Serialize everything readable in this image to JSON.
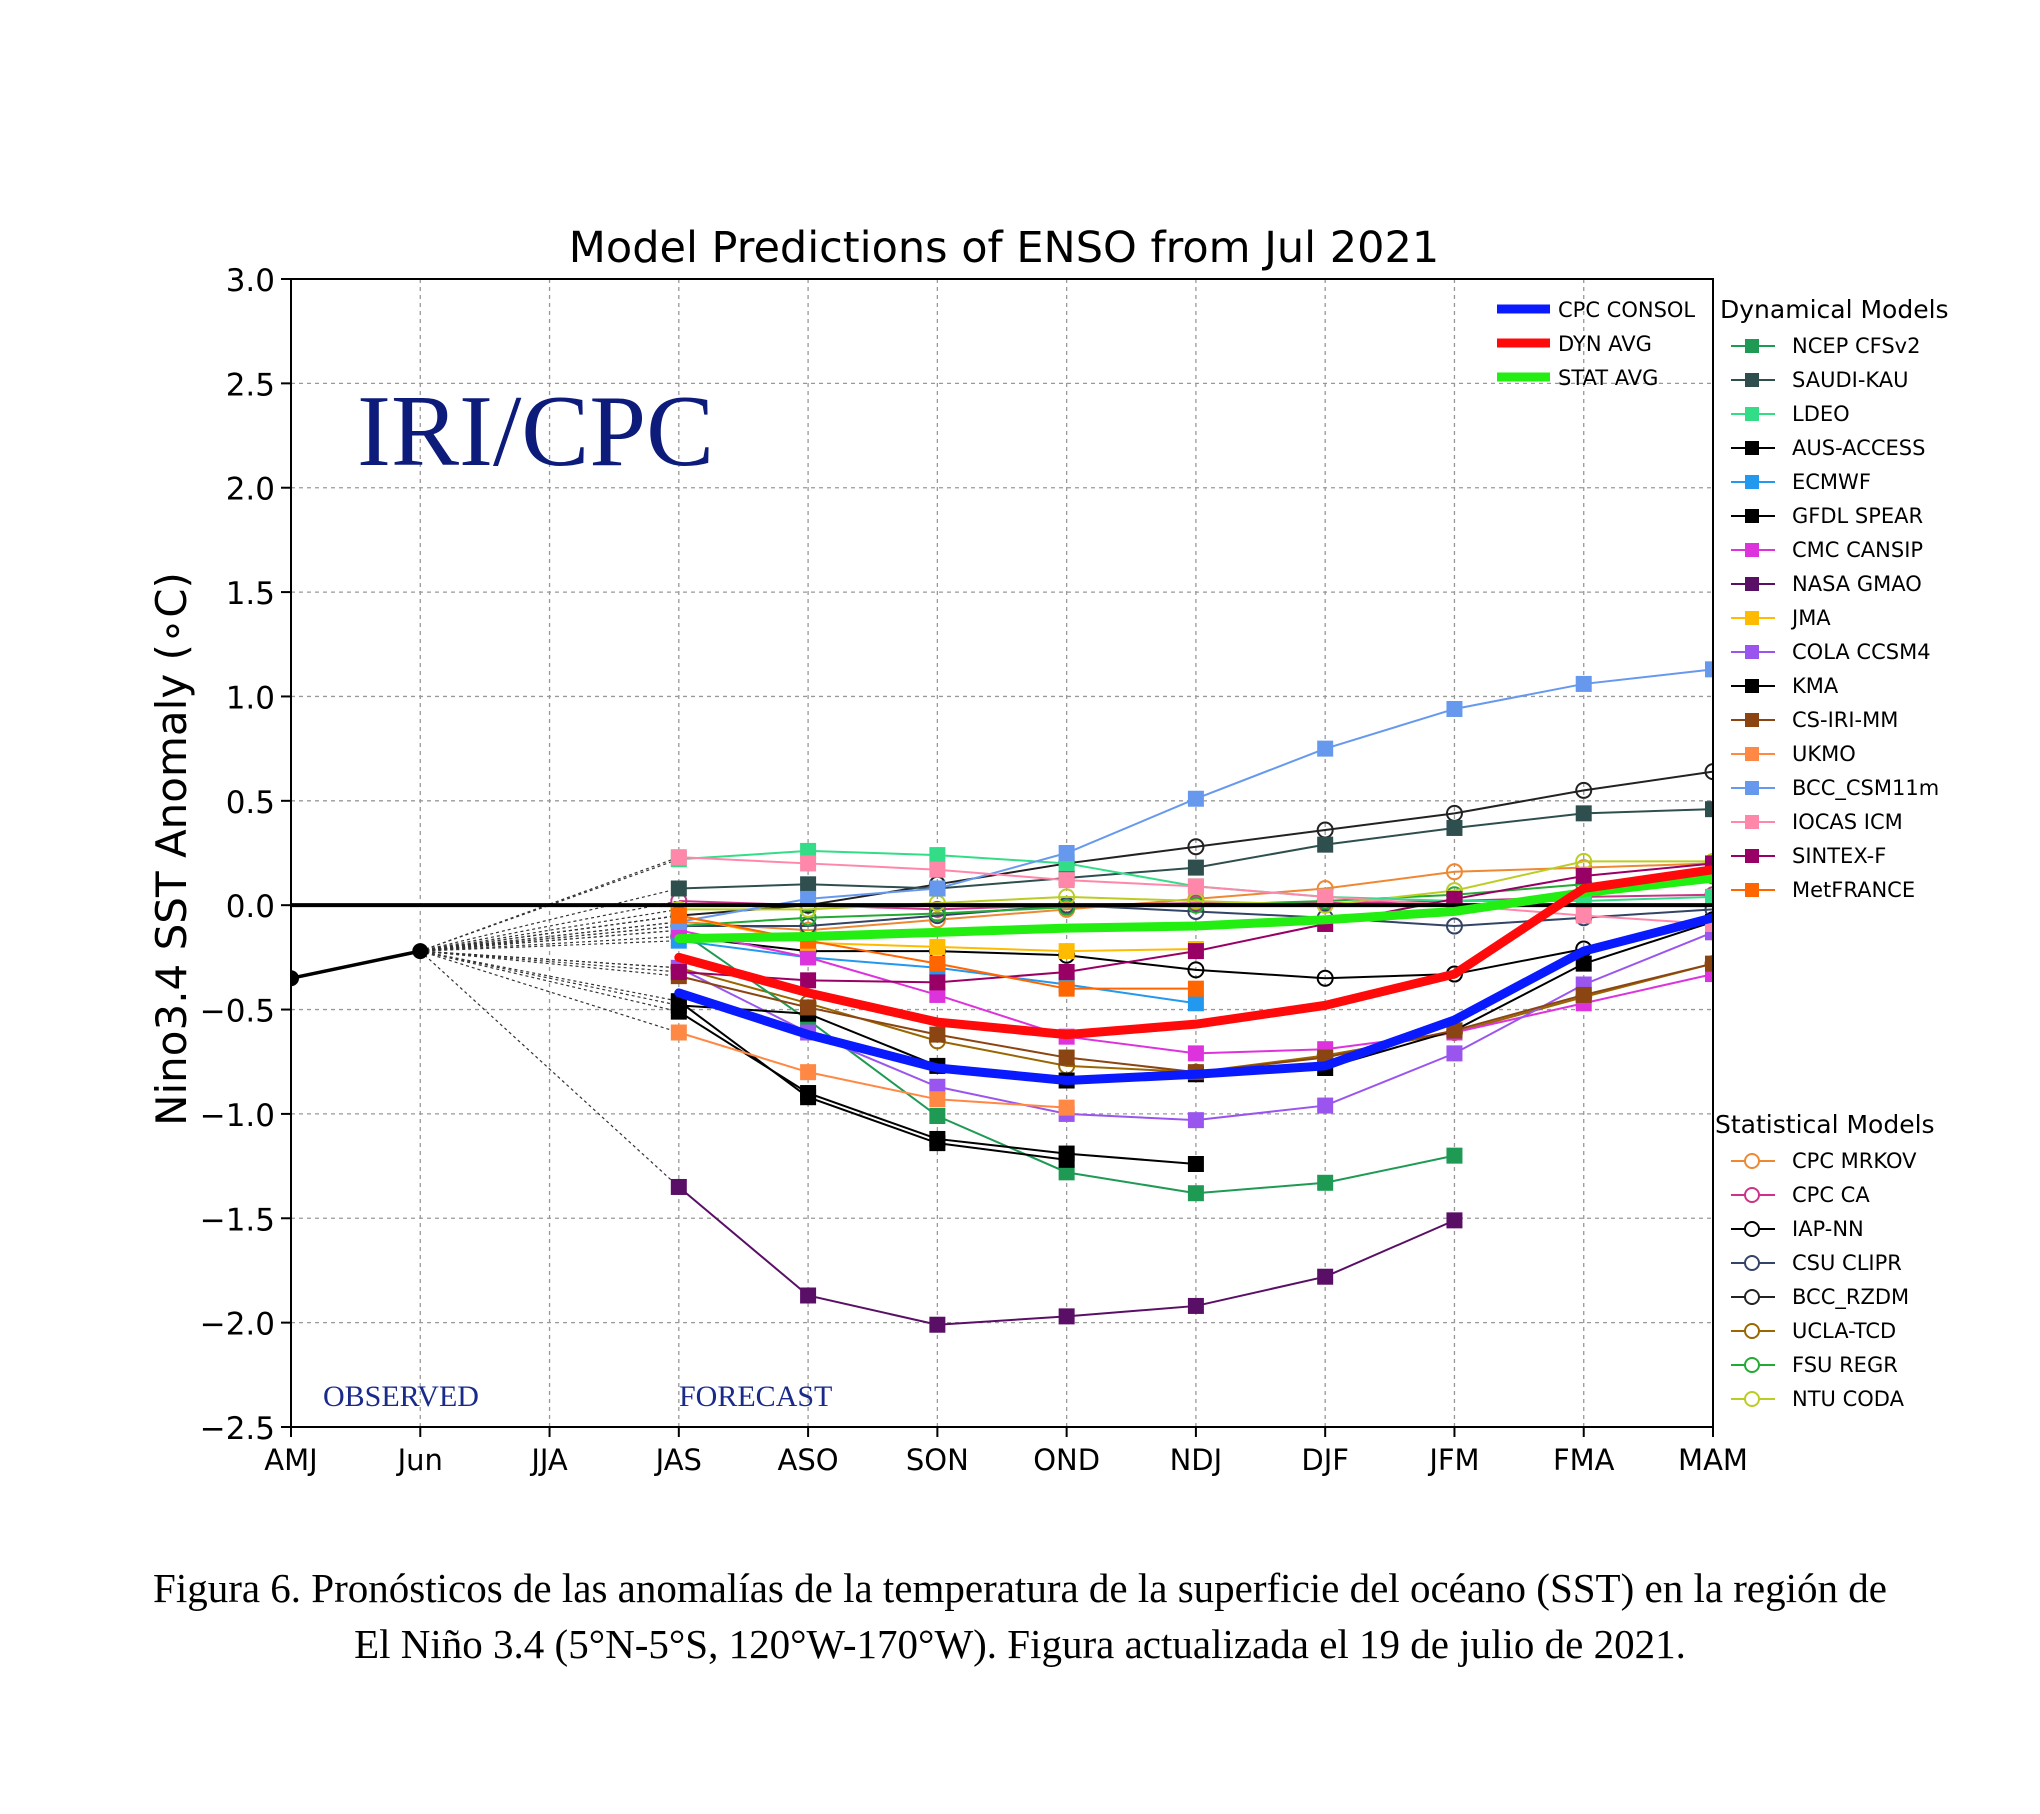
{
  "chart_data": {
    "type": "line",
    "title": "Model Predictions of ENSO from Jul 2021",
    "ylabel": "Nino3.4 SST Anomaly (∘C)",
    "xlabel": "",
    "categories": [
      "AMJ",
      "Jun",
      "JJA",
      "JAS",
      "ASO",
      "SON",
      "OND",
      "NDJ",
      "DJF",
      "JFM",
      "FMA",
      "MAM"
    ],
    "ylim": [
      -2.5,
      3.0
    ],
    "yticks": [
      "3.0",
      "2.5",
      "2.0",
      "1.5",
      "1.0",
      "0.5",
      "0.0",
      "−0.5",
      "−1.0",
      "−1.5",
      "−2.0",
      "−2.5"
    ],
    "grid": true,
    "watermark": "IRI/CPC",
    "annotations": [
      "OBSERVED",
      "FORECAST"
    ],
    "observed": [
      -0.35,
      -0.22
    ],
    "legend_headers": {
      "dynamical": "Dynamical Models",
      "statistical": "Statistical Models"
    },
    "averages": [
      {
        "name": "CPC CONSOL",
        "color": "#0a1aff",
        "values": [
          null,
          null,
          null,
          -0.42,
          -0.62,
          -0.78,
          -0.84,
          -0.81,
          -0.77,
          -0.55,
          -0.22,
          -0.06
        ]
      },
      {
        "name": "DYN AVG",
        "color": "#ff0a0a",
        "values": [
          null,
          null,
          null,
          -0.25,
          -0.42,
          -0.56,
          -0.62,
          -0.57,
          -0.48,
          -0.33,
          0.08,
          0.17
        ]
      },
      {
        "name": "STAT AVG",
        "color": "#22ee11",
        "values": [
          null,
          null,
          null,
          -0.16,
          -0.15,
          -0.13,
          -0.11,
          -0.1,
          -0.07,
          -0.03,
          0.06,
          0.13
        ]
      }
    ],
    "dynamical": [
      {
        "name": "NCEP CFSv2",
        "color": "#1e9a55",
        "values": [
          null,
          null,
          null,
          -0.12,
          -0.55,
          -1.01,
          -1.28,
          -1.38,
          -1.33,
          -1.2,
          null,
          null
        ]
      },
      {
        "name": "SAUDI-KAU",
        "color": "#2f4f4f",
        "values": [
          null,
          null,
          null,
          0.08,
          0.1,
          0.08,
          0.13,
          0.18,
          0.29,
          0.37,
          0.44,
          0.46
        ]
      },
      {
        "name": "LDEO",
        "color": "#33dd88",
        "values": [
          null,
          null,
          null,
          0.22,
          0.26,
          0.24,
          0.2,
          0.09,
          0.04,
          0.02,
          0.02,
          0.04
        ]
      },
      {
        "name": "AUS-ACCESS",
        "color": "#000000",
        "values": [
          null,
          null,
          null,
          -0.51,
          -0.9,
          -1.12,
          -1.19,
          -1.24,
          null,
          null,
          null,
          null
        ]
      },
      {
        "name": "ECMWF",
        "color": "#2299ee",
        "values": [
          null,
          null,
          null,
          -0.17,
          -0.25,
          -0.3,
          -0.38,
          -0.47,
          null,
          null,
          null,
          null
        ]
      },
      {
        "name": "GFDL SPEAR",
        "color": "#000000",
        "values": [
          null,
          null,
          null,
          -0.46,
          -0.92,
          -1.14,
          -1.22,
          null,
          null,
          null,
          null,
          null
        ]
      },
      {
        "name": "CMC CANSIP",
        "color": "#dd33dd",
        "values": [
          null,
          null,
          null,
          -0.12,
          -0.25,
          -0.43,
          -0.63,
          -0.71,
          -0.69,
          -0.61,
          -0.47,
          -0.33
        ]
      },
      {
        "name": "NASA GMAO",
        "color": "#5a0f66",
        "values": [
          null,
          null,
          null,
          -1.35,
          -1.87,
          -2.01,
          -1.97,
          -1.92,
          -1.78,
          -1.51,
          null,
          null
        ]
      },
      {
        "name": "JMA",
        "color": "#ffbb00",
        "values": [
          null,
          null,
          null,
          -0.05,
          -0.18,
          -0.2,
          -0.22,
          -0.21,
          null,
          null,
          null,
          null
        ]
      },
      {
        "name": "COLA CCSM4",
        "color": "#9955ee",
        "values": [
          null,
          null,
          null,
          -0.3,
          -0.61,
          -0.87,
          -1.0,
          -1.03,
          -0.96,
          -0.71,
          -0.38,
          -0.13
        ]
      },
      {
        "name": "KMA",
        "color": "#000000",
        "values": [
          null,
          null,
          null,
          -0.48,
          -0.52,
          -0.77,
          -0.84,
          -0.81,
          -0.78,
          -0.6,
          -0.28,
          -0.08
        ]
      },
      {
        "name": "CS-IRI-MM",
        "color": "#8b4513",
        "values": [
          null,
          null,
          null,
          -0.34,
          -0.49,
          -0.62,
          -0.73,
          -0.8,
          -0.73,
          -0.6,
          -0.43,
          -0.28
        ]
      },
      {
        "name": "UKMO",
        "color": "#ff8844",
        "values": [
          null,
          null,
          null,
          -0.61,
          -0.8,
          -0.93,
          -0.97,
          null,
          null,
          null,
          null,
          null
        ]
      },
      {
        "name": "BCC_CSM11m",
        "color": "#6699ee",
        "values": [
          null,
          null,
          null,
          -0.08,
          0.03,
          0.08,
          0.25,
          0.51,
          0.75,
          0.94,
          1.06,
          1.13
        ]
      },
      {
        "name": "IOCAS ICM",
        "color": "#ff88aa",
        "values": [
          null,
          null,
          null,
          0.23,
          0.2,
          0.17,
          0.12,
          0.09,
          0.04,
          0.0,
          -0.05,
          -0.09
        ]
      },
      {
        "name": "SINTEX-F",
        "color": "#990066",
        "values": [
          null,
          null,
          null,
          -0.32,
          -0.36,
          -0.37,
          -0.32,
          -0.22,
          -0.09,
          0.03,
          0.14,
          0.2
        ]
      },
      {
        "name": "MetFRANCE",
        "color": "#ff6600",
        "values": [
          null,
          null,
          null,
          -0.05,
          -0.17,
          -0.28,
          -0.4,
          -0.4,
          null,
          null,
          null,
          null
        ]
      }
    ],
    "statistical": [
      {
        "name": "CPC MRKOV",
        "color": "#ee8833",
        "values": [
          null,
          null,
          null,
          -0.08,
          -0.12,
          -0.07,
          -0.02,
          0.03,
          0.08,
          0.16,
          0.18,
          0.2
        ]
      },
      {
        "name": "CPC CA",
        "color": "#cc3388",
        "values": [
          null,
          null,
          null,
          0.02,
          0.0,
          -0.02,
          0.0,
          0.01,
          0.01,
          0.02,
          0.04,
          0.05
        ]
      },
      {
        "name": "IAP-NN",
        "color": "#000000",
        "values": [
          null,
          null,
          null,
          -0.15,
          -0.22,
          -0.22,
          -0.24,
          -0.31,
          -0.35,
          -0.33,
          -0.21,
          -0.07
        ]
      },
      {
        "name": "CSU CLIPR",
        "color": "#334466",
        "values": [
          null,
          null,
          null,
          -0.1,
          -0.1,
          -0.05,
          0.0,
          -0.03,
          -0.06,
          -0.1,
          -0.06,
          -0.02
        ]
      },
      {
        "name": "BCC_RZDM",
        "color": "#222222",
        "values": [
          null,
          null,
          null,
          -0.05,
          0.0,
          0.1,
          0.2,
          0.28,
          0.36,
          0.44,
          0.55,
          0.64
        ]
      },
      {
        "name": "UCLA-TCD",
        "color": "#996600",
        "values": [
          null,
          null,
          null,
          -0.3,
          -0.47,
          -0.65,
          -0.77,
          -0.8,
          -0.72,
          -0.61,
          -0.44,
          -0.28
        ]
      },
      {
        "name": "FSU REGR",
        "color": "#22aa33",
        "values": [
          null,
          null,
          null,
          -0.1,
          -0.06,
          -0.04,
          -0.01,
          0.0,
          0.02,
          0.05,
          0.1,
          0.14
        ]
      },
      {
        "name": "NTU CODA",
        "color": "#bbcc22",
        "values": [
          null,
          null,
          null,
          -0.02,
          -0.02,
          0.01,
          0.04,
          0.02,
          0.0,
          0.07,
          0.21,
          0.21
        ]
      }
    ]
  },
  "caption": {
    "line1": "Figura 6. Pronósticos de las anomalías de la temperatura de la superficie del océano (SST) en la región de",
    "line2": "El Niño 3.4 (5°N-5°S, 120°W-170°W). Figura actualizada el 19 de julio de 2021."
  }
}
